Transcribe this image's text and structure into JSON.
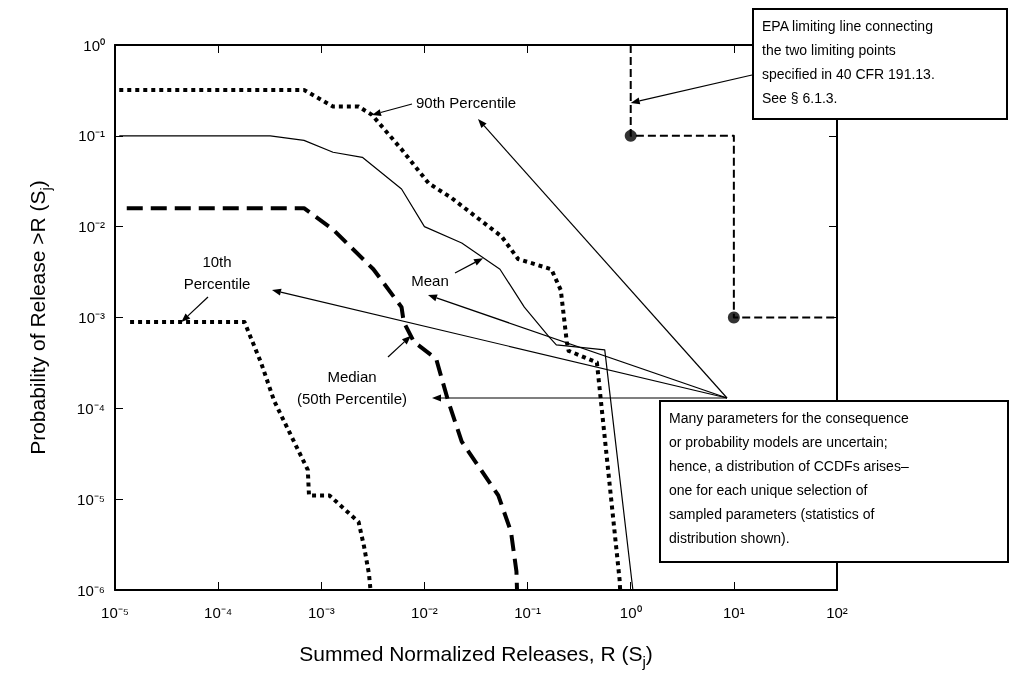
{
  "chart_data": {
    "type": "line",
    "xlabel": "Summed Normalized Releases, R (S$_{j}$)",
    "ylabel": "Probability of Release >R (S$_{j}$)",
    "xlim": [
      1e-05,
      100
    ],
    "ylim": [
      1e-06,
      1
    ],
    "xticks": [
      {
        "value": 1e-05,
        "label": "10⁻⁵"
      },
      {
        "value": 0.0001,
        "label": "10⁻⁴"
      },
      {
        "value": 0.001,
        "label": "10⁻³"
      },
      {
        "value": 0.01,
        "label": "10⁻²"
      },
      {
        "value": 0.1,
        "label": "10⁻¹"
      },
      {
        "value": 1,
        "label": "10⁰"
      },
      {
        "value": 10,
        "label": "10¹"
      },
      {
        "value": 100,
        "label": "10²"
      }
    ],
    "yticks": [
      {
        "value": 1e-06,
        "label": "10⁻⁶"
      },
      {
        "value": 1e-05,
        "label": "10⁻⁵"
      },
      {
        "value": 0.0001,
        "label": "10⁻⁴"
      },
      {
        "value": 0.001,
        "label": "10⁻³"
      },
      {
        "value": 0.01,
        "label": "10⁻²"
      },
      {
        "value": 0.1,
        "label": "10⁻¹"
      },
      {
        "value": 1,
        "label": "10⁰"
      }
    ],
    "log": "xy",
    "grid": false,
    "series": [
      {
        "color": "#000000",
        "line_style": "dotted",
        "marker": "none",
        "x": [
          1.1e-05,
          0.00068,
          0.0013,
          0.0023,
          0.0031,
          0.006,
          0.011,
          0.018,
          0.056,
          0.081,
          0.17,
          0.21,
          0.24,
          0.25,
          0.47,
          0.78,
          0.79
        ],
        "values": [
          0.32,
          0.32,
          0.21,
          0.21,
          0.17,
          0.071,
          0.03,
          0.021,
          0.0078,
          0.0044,
          0.0034,
          0.002,
          0.00054,
          0.00043,
          0.00032,
          1.3e-06,
          1e-06
        ]
      },
      {
        "color": "#000000",
        "line_style": "solid",
        "marker": "none",
        "x": [
          1.1e-05,
          0.00032,
          0.00068,
          0.0013,
          0.0025,
          0.006,
          0.01,
          0.023,
          0.054,
          0.093,
          0.16,
          0.19,
          0.56,
          1.05
        ],
        "values": [
          0.1,
          0.1,
          0.089,
          0.066,
          0.058,
          0.026,
          0.01,
          0.0066,
          0.0034,
          0.0013,
          0.00062,
          0.0005,
          0.00044,
          1e-06
        ]
      },
      {
        "color": "#000000",
        "line_style": "dotted",
        "marker": "none",
        "x": [
          1.4e-05,
          0.00018,
          0.00026,
          0.00035,
          0.00074,
          0.00076,
          0.0012,
          0.0023,
          0.0026,
          0.0029,
          0.003
        ],
        "values": [
          0.00089,
          0.00089,
          0.00032,
          0.00012,
          2.1e-05,
          1.1e-05,
          1.1e-05,
          5.6e-06,
          3e-06,
          1.5e-06,
          1e-06
        ]
      },
      {
        "color": "#000000",
        "line_style": "dashed",
        "marker": "none",
        "x": [
          1.3e-05,
          0.00068,
          0.0013,
          0.0032,
          0.006,
          0.0063,
          0.0079,
          0.013,
          0.017,
          0.023,
          0.052,
          0.069,
          0.078,
          0.079
        ],
        "values": [
          0.016,
          0.016,
          0.0093,
          0.0034,
          0.0013,
          0.00089,
          0.00054,
          0.00035,
          0.00012,
          4.3e-05,
          1.1e-05,
          4.4e-06,
          1.6e-06,
          1e-06
        ]
      },
      {
        "color": "#000000",
        "line_style": "dashed",
        "marker": "none",
        "x": [
          1,
          1,
          10,
          10,
          100
        ],
        "values": [
          1,
          0.1,
          0.1,
          0.001,
          0.001
        ]
      },
      {
        "type": "scatter",
        "color": "#000000",
        "marker": "circle",
        "x": [
          1,
          10
        ],
        "values": [
          0.1,
          0.001
        ]
      }
    ],
    "annotations": [
      {
        "text": "90th Percentile",
        "x": 0.0031,
        "y": 0.17
      },
      {
        "text": "Mean",
        "x": 0.037,
        "y": 0.0045
      },
      {
        "text": "10th\nPercentile",
        "x": 4.4e-05,
        "y": 0.00089
      },
      {
        "text": "Median\n(50th Percentile)",
        "x": 0.0074,
        "y": 0.00063
      },
      {
        "text": "EPA limiting line connecting\nthe two limiting points\nspecified in 40 CFR 191.13.\nSee § 6.1.3.",
        "x": 1,
        "y": 0.23
      },
      "Many parameters for the consequence\nor probability models are uncertain;\nhence, a distribution of CCDFs arises–\none for each unique selection of\nsampled parameters (statistics of\ndistribution shown)."
    ]
  }
}
